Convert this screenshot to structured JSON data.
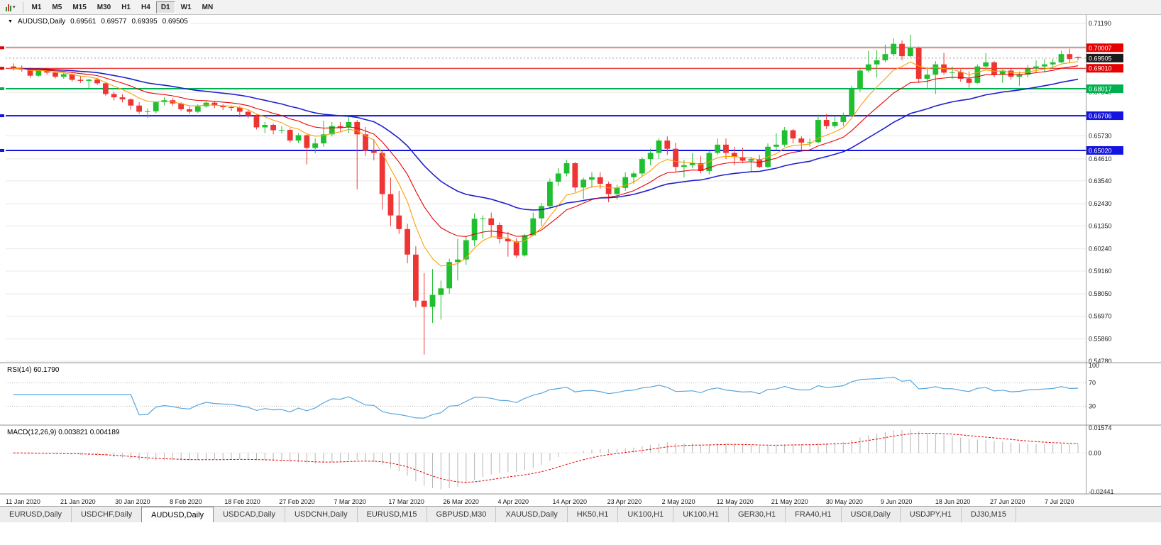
{
  "toolbar": {
    "timeframes": [
      {
        "label": "M1",
        "active": false
      },
      {
        "label": "M5",
        "active": false
      },
      {
        "label": "M15",
        "active": false
      },
      {
        "label": "M30",
        "active": false
      },
      {
        "label": "H1",
        "active": false
      },
      {
        "label": "H4",
        "active": false
      },
      {
        "label": "D1",
        "active": true
      },
      {
        "label": "W1",
        "active": false
      },
      {
        "label": "MN",
        "active": false
      }
    ]
  },
  "chart_title": {
    "symbol": "AUDUSD,Daily",
    "open": "0.69561",
    "high": "0.69577",
    "low": "0.69395",
    "close": "0.69505"
  },
  "chart_data": {
    "type": "candlestick",
    "symbol": "AUDUSD",
    "timeframe": "Daily",
    "price_axis": {
      "min": 0.5478,
      "max": 0.7119,
      "ticks": [
        "0.71190",
        "0.70070",
        "0.68950",
        "0.67840",
        "0.66730",
        "0.65730",
        "0.64610",
        "0.63540",
        "0.62430",
        "0.61350",
        "0.60240",
        "0.59160",
        "0.58050",
        "0.56970",
        "0.55860",
        "0.54780"
      ]
    },
    "current_price": {
      "label": "0.69505",
      "value": 0.69505,
      "color": "#1a1a1a"
    },
    "levels": [
      {
        "value": 0.70007,
        "label": "0.70007",
        "color": "#e60000",
        "width": 1
      },
      {
        "value": 0.6901,
        "label": "0.69010",
        "color": "#e60000",
        "width": 1
      },
      {
        "value": 0.68017,
        "label": "0.68017",
        "color": "#00b050",
        "width": 2
      },
      {
        "value": 0.66706,
        "label": "0.66706",
        "color": "#1414e0",
        "width": 2
      },
      {
        "value": 0.6502,
        "label": "0.65020",
        "color": "#1414e0",
        "width": 2
      }
    ],
    "dates": [
      "11 Jan 2020",
      "21 Jan 2020",
      "30 Jan 2020",
      "8 Feb 2020",
      "18 Feb 2020",
      "27 Feb 2020",
      "7 Mar 2020",
      "17 Mar 2020",
      "26 Mar 2020",
      "4 Apr 2020",
      "14 Apr 2020",
      "23 Apr 2020",
      "2 May 2020",
      "12 May 2020",
      "21 May 2020",
      "30 May 2020",
      "9 Jun 2020",
      "18 Jun 2020",
      "27 Jun 2020",
      "7 Jul 2020"
    ],
    "colors": {
      "up": "#1fbf2f",
      "down": "#ef3434",
      "ma_fast": "#ff9d00",
      "ma_mid": "#e60000",
      "ma_slow": "#2020cc",
      "grid": "#e8e8e8",
      "axis_text": "#1a1a1a"
    },
    "indicators": {
      "rsi": {
        "label": "RSI(14) 60.1790",
        "color": "#59a5dd",
        "level_lines": [
          70,
          30
        ],
        "axis_ticks": [
          "100",
          "70",
          "30"
        ],
        "range": [
          0,
          100
        ]
      },
      "macd": {
        "label": "MACD(12,26,9) 0.003821 0.004189",
        "hist_color": "#b6b6b6",
        "signal_color": "#e60000",
        "axis_ticks": [
          "0.01574",
          "0.00",
          "-0.02441"
        ],
        "range": [
          -0.02441,
          0.01574
        ]
      }
    },
    "ohlc": [
      [
        0.691,
        0.6925,
        0.689,
        0.69
      ],
      [
        0.69,
        0.6915,
        0.6885,
        0.6895
      ],
      [
        0.6895,
        0.6905,
        0.6855,
        0.6865
      ],
      [
        0.6865,
        0.69,
        0.686,
        0.6893
      ],
      [
        0.6893,
        0.69,
        0.687,
        0.688
      ],
      [
        0.688,
        0.6885,
        0.6852,
        0.686
      ],
      [
        0.686,
        0.688,
        0.685,
        0.6872
      ],
      [
        0.6872,
        0.6876,
        0.6835,
        0.6845
      ],
      [
        0.6845,
        0.6865,
        0.683,
        0.684
      ],
      [
        0.684,
        0.685,
        0.6805,
        0.6846
      ],
      [
        0.6846,
        0.6855,
        0.682,
        0.6828
      ],
      [
        0.6828,
        0.6835,
        0.6768,
        0.6776
      ],
      [
        0.6776,
        0.6786,
        0.6745,
        0.676
      ],
      [
        0.676,
        0.6775,
        0.6735,
        0.675
      ],
      [
        0.675,
        0.6756,
        0.67,
        0.672
      ],
      [
        0.672,
        0.6736,
        0.668,
        0.669
      ],
      [
        0.669,
        0.6706,
        0.666,
        0.6692
      ],
      [
        0.6692,
        0.674,
        0.6682,
        0.6736
      ],
      [
        0.6736,
        0.676,
        0.672,
        0.6746
      ],
      [
        0.6746,
        0.6756,
        0.6718,
        0.673
      ],
      [
        0.673,
        0.6736,
        0.6695,
        0.6702
      ],
      [
        0.6702,
        0.6716,
        0.668,
        0.669
      ],
      [
        0.669,
        0.6726,
        0.6684,
        0.6716
      ],
      [
        0.6716,
        0.674,
        0.671,
        0.6734
      ],
      [
        0.6734,
        0.674,
        0.6708,
        0.672
      ],
      [
        0.672,
        0.6726,
        0.6698,
        0.6712
      ],
      [
        0.6712,
        0.672,
        0.6694,
        0.671
      ],
      [
        0.671,
        0.6716,
        0.6664,
        0.669
      ],
      [
        0.669,
        0.67,
        0.6658,
        0.667
      ],
      [
        0.667,
        0.6676,
        0.6604,
        0.6614
      ],
      [
        0.6614,
        0.664,
        0.6586,
        0.6626
      ],
      [
        0.6626,
        0.6632,
        0.658,
        0.66
      ],
      [
        0.66,
        0.662,
        0.6584,
        0.6602
      ],
      [
        0.6602,
        0.661,
        0.654,
        0.655
      ],
      [
        0.655,
        0.6586,
        0.6538,
        0.6576
      ],
      [
        0.6576,
        0.658,
        0.6434,
        0.6514
      ],
      [
        0.6514,
        0.656,
        0.6488,
        0.6536
      ],
      [
        0.6536,
        0.6646,
        0.652,
        0.658
      ],
      [
        0.658,
        0.664,
        0.657,
        0.662
      ],
      [
        0.662,
        0.664,
        0.6594,
        0.6614
      ],
      [
        0.6614,
        0.667,
        0.6586,
        0.664
      ],
      [
        0.664,
        0.665,
        0.6313,
        0.658
      ],
      [
        0.658,
        0.6616,
        0.6476,
        0.65
      ],
      [
        0.65,
        0.6556,
        0.6454,
        0.649
      ],
      [
        0.649,
        0.65,
        0.6214,
        0.629
      ],
      [
        0.629,
        0.637,
        0.6134,
        0.6186
      ],
      [
        0.6186,
        0.6306,
        0.6096,
        0.612
      ],
      [
        0.612,
        0.6146,
        0.5954,
        0.5996
      ],
      [
        0.5996,
        0.6036,
        0.574,
        0.5772
      ],
      [
        0.5772,
        0.5906,
        0.551,
        0.5742
      ],
      [
        0.5742,
        0.5926,
        0.5664,
        0.58
      ],
      [
        0.58,
        0.587,
        0.568,
        0.5832
      ],
      [
        0.5832,
        0.5976,
        0.5806,
        0.596
      ],
      [
        0.596,
        0.6072,
        0.587,
        0.5972
      ],
      [
        0.5972,
        0.6086,
        0.5946,
        0.6066
      ],
      [
        0.6066,
        0.6196,
        0.6036,
        0.617
      ],
      [
        0.617,
        0.6186,
        0.6076,
        0.6172
      ],
      [
        0.6172,
        0.62,
        0.608,
        0.614
      ],
      [
        0.614,
        0.6152,
        0.605,
        0.6072
      ],
      [
        0.6072,
        0.6106,
        0.5986,
        0.606
      ],
      [
        0.606,
        0.6076,
        0.598,
        0.5992
      ],
      [
        0.5992,
        0.6096,
        0.5986,
        0.609
      ],
      [
        0.609,
        0.62,
        0.6086,
        0.6172
      ],
      [
        0.6172,
        0.6246,
        0.6136,
        0.6232
      ],
      [
        0.6232,
        0.6366,
        0.6222,
        0.635
      ],
      [
        0.635,
        0.6416,
        0.633,
        0.639
      ],
      [
        0.639,
        0.6456,
        0.6376,
        0.644
      ],
      [
        0.644,
        0.6446,
        0.63,
        0.6322
      ],
      [
        0.6322,
        0.637,
        0.6266,
        0.636
      ],
      [
        0.636,
        0.6396,
        0.632,
        0.6372
      ],
      [
        0.6372,
        0.6396,
        0.6316,
        0.634
      ],
      [
        0.634,
        0.635,
        0.625,
        0.629
      ],
      [
        0.629,
        0.6336,
        0.6262,
        0.632
      ],
      [
        0.632,
        0.6396,
        0.6306,
        0.6372
      ],
      [
        0.6372,
        0.64,
        0.634,
        0.639
      ],
      [
        0.639,
        0.647,
        0.6376,
        0.646
      ],
      [
        0.646,
        0.651,
        0.643,
        0.649
      ],
      [
        0.649,
        0.656,
        0.646,
        0.655
      ],
      [
        0.655,
        0.657,
        0.648,
        0.651
      ],
      [
        0.651,
        0.654,
        0.64,
        0.6422
      ],
      [
        0.6422,
        0.6456,
        0.637,
        0.643
      ],
      [
        0.643,
        0.649,
        0.6416,
        0.644
      ],
      [
        0.644,
        0.6476,
        0.639,
        0.6402
      ],
      [
        0.6402,
        0.65,
        0.6386,
        0.649
      ],
      [
        0.649,
        0.656,
        0.648,
        0.653
      ],
      [
        0.653,
        0.656,
        0.646,
        0.649
      ],
      [
        0.649,
        0.652,
        0.643,
        0.647
      ],
      [
        0.647,
        0.6516,
        0.644,
        0.6452
      ],
      [
        0.6452,
        0.647,
        0.64,
        0.646
      ],
      [
        0.646,
        0.648,
        0.6416,
        0.6422
      ],
      [
        0.6422,
        0.6536,
        0.6416,
        0.652
      ],
      [
        0.652,
        0.6586,
        0.6506,
        0.653
      ],
      [
        0.653,
        0.6616,
        0.652,
        0.66
      ],
      [
        0.66,
        0.6606,
        0.6536,
        0.656
      ],
      [
        0.656,
        0.657,
        0.6506,
        0.654
      ],
      [
        0.654,
        0.656,
        0.652,
        0.6542
      ],
      [
        0.6542,
        0.6676,
        0.6536,
        0.665
      ],
      [
        0.665,
        0.668,
        0.6606,
        0.662
      ],
      [
        0.662,
        0.6666,
        0.661,
        0.664
      ],
      [
        0.664,
        0.6686,
        0.662,
        0.667
      ],
      [
        0.667,
        0.6816,
        0.6666,
        0.68
      ],
      [
        0.68,
        0.69,
        0.6786,
        0.689
      ],
      [
        0.689,
        0.6986,
        0.688,
        0.692
      ],
      [
        0.692,
        0.699,
        0.6856,
        0.694
      ],
      [
        0.694,
        0.7016,
        0.693,
        0.697
      ],
      [
        0.697,
        0.7046,
        0.696,
        0.702
      ],
      [
        0.702,
        0.7036,
        0.694,
        0.696
      ],
      [
        0.696,
        0.7064,
        0.6956,
        0.7
      ],
      [
        0.7,
        0.7006,
        0.683,
        0.685
      ],
      [
        0.685,
        0.6906,
        0.68,
        0.687
      ],
      [
        0.687,
        0.6936,
        0.6776,
        0.692
      ],
      [
        0.692,
        0.6976,
        0.687,
        0.688
      ],
      [
        0.688,
        0.691,
        0.685,
        0.6882
      ],
      [
        0.6882,
        0.6896,
        0.6836,
        0.685
      ],
      [
        0.685,
        0.6886,
        0.6806,
        0.683
      ],
      [
        0.683,
        0.692,
        0.6826,
        0.691
      ],
      [
        0.691,
        0.6976,
        0.69,
        0.693
      ],
      [
        0.693,
        0.6936,
        0.6856,
        0.687
      ],
      [
        0.687,
        0.6896,
        0.683,
        0.689
      ],
      [
        0.689,
        0.69,
        0.6846,
        0.686
      ],
      [
        0.686,
        0.6886,
        0.6816,
        0.687
      ],
      [
        0.687,
        0.6916,
        0.6856,
        0.69
      ],
      [
        0.69,
        0.694,
        0.688,
        0.691
      ],
      [
        0.691,
        0.6946,
        0.688,
        0.692
      ],
      [
        0.692,
        0.6946,
        0.69,
        0.693
      ],
      [
        0.693,
        0.6986,
        0.6926,
        0.697
      ],
      [
        0.697,
        0.6996,
        0.6926,
        0.6946
      ],
      [
        0.6956,
        0.6958,
        0.694,
        0.6951
      ]
    ]
  },
  "tabs": [
    {
      "label": "EURUSD,Daily",
      "active": false
    },
    {
      "label": "USDCHF,Daily",
      "active": false
    },
    {
      "label": "AUDUSD,Daily",
      "active": true
    },
    {
      "label": "USDCAD,Daily",
      "active": false
    },
    {
      "label": "USDCNH,Daily",
      "active": false
    },
    {
      "label": "EURUSD,M15",
      "active": false
    },
    {
      "label": "GBPUSD,M30",
      "active": false
    },
    {
      "label": "XAUUSD,Daily",
      "active": false
    },
    {
      "label": "HK50,H1",
      "active": false
    },
    {
      "label": "UK100,H1",
      "active": false
    },
    {
      "label": "UK100,H1",
      "active": false
    },
    {
      "label": "GER30,H1",
      "active": false
    },
    {
      "label": "FRA40,H1",
      "active": false
    },
    {
      "label": "USOil,Daily",
      "active": false
    },
    {
      "label": "USDJPY,H1",
      "active": false
    },
    {
      "label": "DJ30,M15",
      "active": false
    }
  ]
}
